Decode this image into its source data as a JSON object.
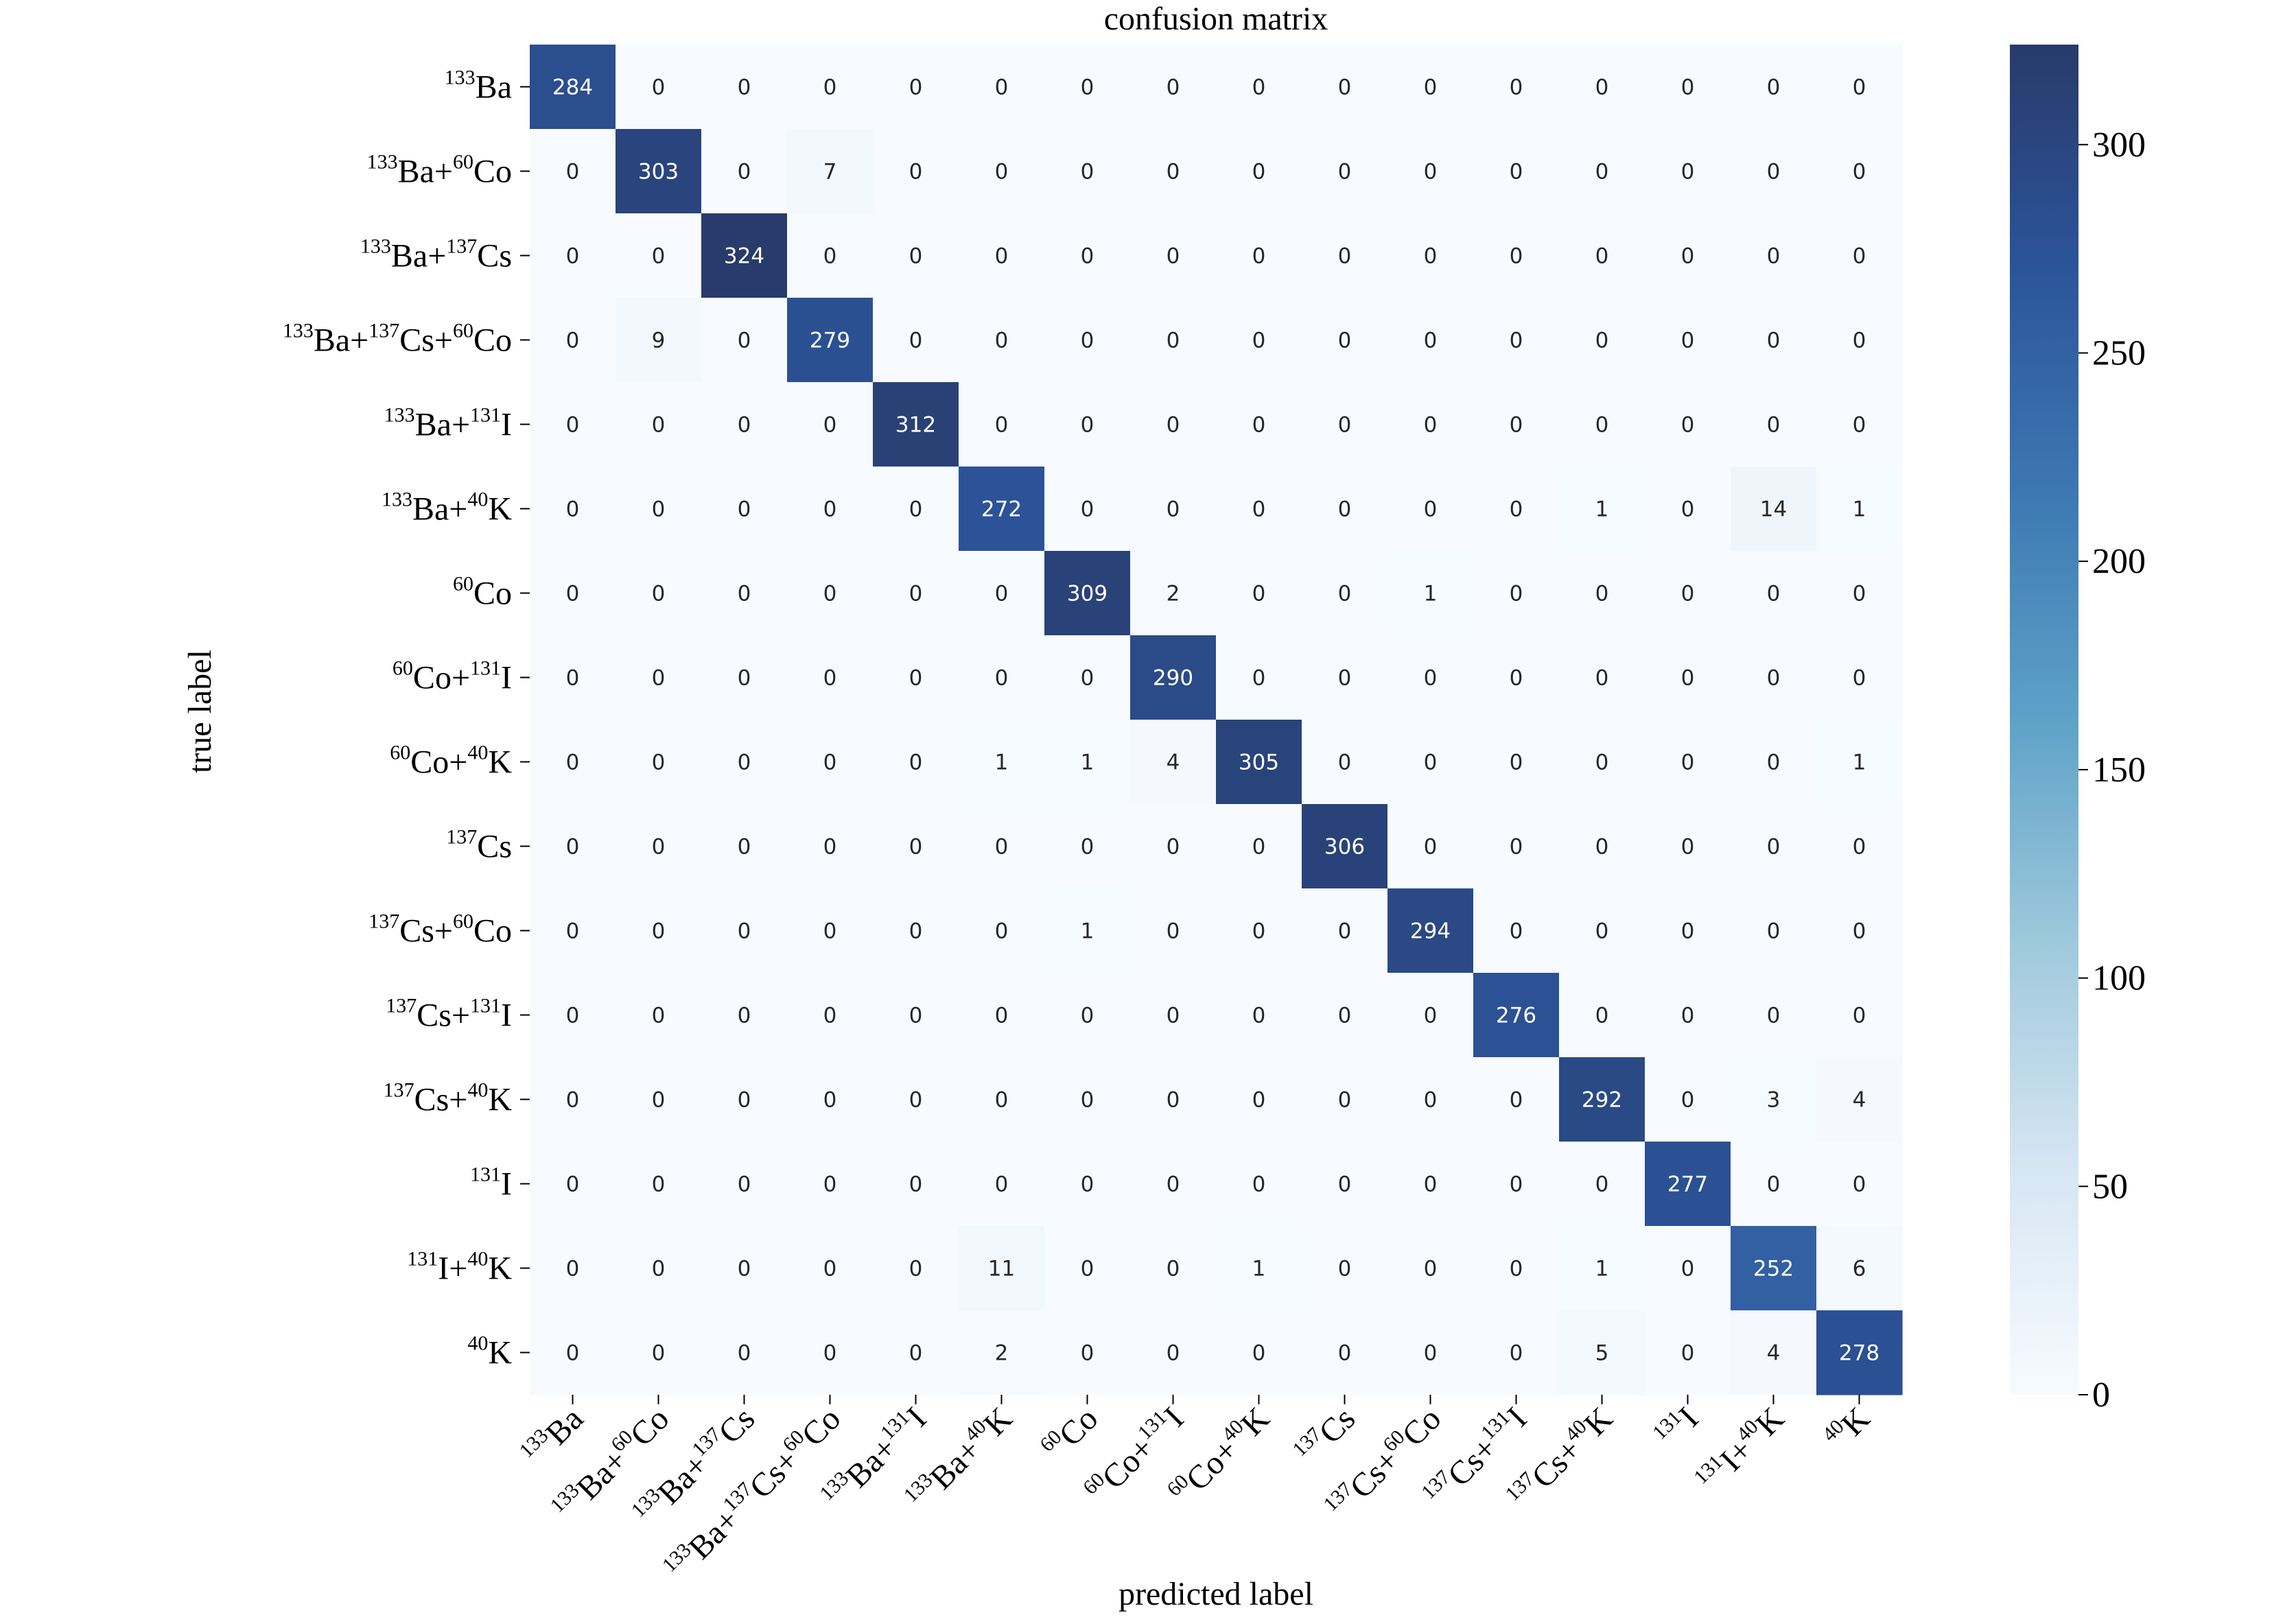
{
  "chart_data": {
    "type": "heatmap",
    "title": "confusion matrix",
    "xlabel": "predicted label",
    "ylabel": "true label",
    "labels": [
      {
        "id": "Ba133",
        "parts": [
          [
            "sup",
            "133"
          ],
          [
            "base",
            "Ba"
          ]
        ]
      },
      {
        "id": "Ba133Co60",
        "parts": [
          [
            "sup",
            "133"
          ],
          [
            "base",
            "Ba+"
          ],
          [
            "sup",
            "60"
          ],
          [
            "base",
            "Co"
          ]
        ]
      },
      {
        "id": "Ba133Cs137",
        "parts": [
          [
            "sup",
            "133"
          ],
          [
            "base",
            "Ba+"
          ],
          [
            "sup",
            "137"
          ],
          [
            "base",
            "Cs"
          ]
        ]
      },
      {
        "id": "Ba133Cs137Co60",
        "parts": [
          [
            "sup",
            "133"
          ],
          [
            "base",
            "Ba+"
          ],
          [
            "sup",
            "137"
          ],
          [
            "base",
            "Cs+"
          ],
          [
            "sup",
            "60"
          ],
          [
            "base",
            "Co"
          ]
        ]
      },
      {
        "id": "Ba133I131",
        "parts": [
          [
            "sup",
            "133"
          ],
          [
            "base",
            "Ba+"
          ],
          [
            "sup",
            "131"
          ],
          [
            "base",
            "I"
          ]
        ]
      },
      {
        "id": "Ba133K40",
        "parts": [
          [
            "sup",
            "133"
          ],
          [
            "base",
            "Ba+"
          ],
          [
            "sup",
            "40"
          ],
          [
            "base",
            "K"
          ]
        ]
      },
      {
        "id": "Co60",
        "parts": [
          [
            "sup",
            "60"
          ],
          [
            "base",
            "Co"
          ]
        ]
      },
      {
        "id": "Co60I131",
        "parts": [
          [
            "sup",
            "60"
          ],
          [
            "base",
            "Co+"
          ],
          [
            "sup",
            "131"
          ],
          [
            "base",
            "I"
          ]
        ]
      },
      {
        "id": "Co60K40",
        "parts": [
          [
            "sup",
            "60"
          ],
          [
            "base",
            "Co+"
          ],
          [
            "sup",
            "40"
          ],
          [
            "base",
            "K"
          ]
        ]
      },
      {
        "id": "Cs137",
        "parts": [
          [
            "sup",
            "137"
          ],
          [
            "base",
            "Cs"
          ]
        ]
      },
      {
        "id": "Cs137Co60",
        "parts": [
          [
            "sup",
            "137"
          ],
          [
            "base",
            "Cs+"
          ],
          [
            "sup",
            "60"
          ],
          [
            "base",
            "Co"
          ]
        ]
      },
      {
        "id": "Cs137I131",
        "parts": [
          [
            "sup",
            "137"
          ],
          [
            "base",
            "Cs+"
          ],
          [
            "sup",
            "131"
          ],
          [
            "base",
            "I"
          ]
        ]
      },
      {
        "id": "Cs137K40",
        "parts": [
          [
            "sup",
            "137"
          ],
          [
            "base",
            "Cs+"
          ],
          [
            "sup",
            "40"
          ],
          [
            "base",
            "K"
          ]
        ]
      },
      {
        "id": "I131",
        "parts": [
          [
            "sup",
            "131"
          ],
          [
            "base",
            "I"
          ]
        ]
      },
      {
        "id": "I131K40",
        "parts": [
          [
            "sup",
            "131"
          ],
          [
            "base",
            "I+"
          ],
          [
            "sup",
            "40"
          ],
          [
            "base",
            "K"
          ]
        ]
      },
      {
        "id": "K40",
        "parts": [
          [
            "sup",
            "40"
          ],
          [
            "base",
            "K"
          ]
        ]
      }
    ],
    "matrix": [
      [
        284,
        0,
        0,
        0,
        0,
        0,
        0,
        0,
        0,
        0,
        0,
        0,
        0,
        0,
        0,
        0
      ],
      [
        0,
        303,
        0,
        7,
        0,
        0,
        0,
        0,
        0,
        0,
        0,
        0,
        0,
        0,
        0,
        0
      ],
      [
        0,
        0,
        324,
        0,
        0,
        0,
        0,
        0,
        0,
        0,
        0,
        0,
        0,
        0,
        0,
        0
      ],
      [
        0,
        9,
        0,
        279,
        0,
        0,
        0,
        0,
        0,
        0,
        0,
        0,
        0,
        0,
        0,
        0
      ],
      [
        0,
        0,
        0,
        0,
        312,
        0,
        0,
        0,
        0,
        0,
        0,
        0,
        0,
        0,
        0,
        0
      ],
      [
        0,
        0,
        0,
        0,
        0,
        272,
        0,
        0,
        0,
        0,
        0,
        0,
        1,
        0,
        14,
        1
      ],
      [
        0,
        0,
        0,
        0,
        0,
        0,
        309,
        2,
        0,
        0,
        1,
        0,
        0,
        0,
        0,
        0
      ],
      [
        0,
        0,
        0,
        0,
        0,
        0,
        0,
        290,
        0,
        0,
        0,
        0,
        0,
        0,
        0,
        0
      ],
      [
        0,
        0,
        0,
        0,
        0,
        1,
        1,
        4,
        305,
        0,
        0,
        0,
        0,
        0,
        0,
        1
      ],
      [
        0,
        0,
        0,
        0,
        0,
        0,
        0,
        0,
        0,
        306,
        0,
        0,
        0,
        0,
        0,
        0
      ],
      [
        0,
        0,
        0,
        0,
        0,
        0,
        1,
        0,
        0,
        0,
        294,
        0,
        0,
        0,
        0,
        0
      ],
      [
        0,
        0,
        0,
        0,
        0,
        0,
        0,
        0,
        0,
        0,
        0,
        276,
        0,
        0,
        0,
        0
      ],
      [
        0,
        0,
        0,
        0,
        0,
        0,
        0,
        0,
        0,
        0,
        0,
        0,
        292,
        0,
        3,
        4
      ],
      [
        0,
        0,
        0,
        0,
        0,
        0,
        0,
        0,
        0,
        0,
        0,
        0,
        0,
        277,
        0,
        0
      ],
      [
        0,
        0,
        0,
        0,
        0,
        11,
        0,
        0,
        1,
        0,
        0,
        0,
        1,
        0,
        252,
        6
      ],
      [
        0,
        0,
        0,
        0,
        0,
        2,
        0,
        0,
        0,
        0,
        0,
        0,
        5,
        0,
        4,
        278
      ]
    ],
    "colorbar": {
      "min": 0,
      "max": 324,
      "ticks": [
        0,
        50,
        100,
        150,
        200,
        250,
        300
      ],
      "colormap": [
        "#f7fbff",
        "#d6e6f3",
        "#9fc9dc",
        "#5ea2c8",
        "#3d78b2",
        "#2c549a",
        "#283b6a"
      ]
    },
    "annotation_colors": {
      "light_text": "#ffffff",
      "dark_text": "#262626"
    }
  }
}
